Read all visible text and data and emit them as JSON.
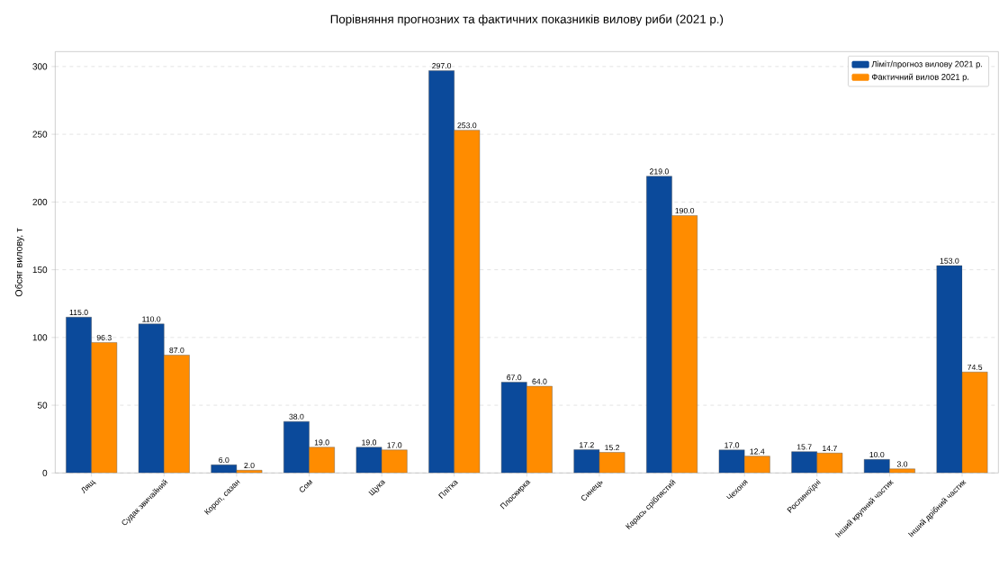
{
  "chart_data": {
    "type": "bar",
    "title": "Порівняння прогнозних та фактичних показників вилову риби (2021 р.)",
    "ylabel": "Обсяг вилову, т",
    "categories": [
      "Лящ",
      "Судак звичайний",
      "Короп, сазан",
      "Сом",
      "Щука",
      "Плітка",
      "Плоскирка",
      "Синець",
      "Карась сріблястий",
      "Чехоня",
      "Рослиноїдні",
      "Інший крупний частик",
      "Інший дрібний частик"
    ],
    "series": [
      {
        "name": "Ліміт/прогноз вилову 2021 р.",
        "color": "#0b4a9b",
        "values": [
          115.0,
          110.0,
          6.0,
          38.0,
          19.0,
          297.0,
          67.0,
          17.2,
          219.0,
          17.0,
          15.7,
          10.0,
          153.0
        ],
        "value_labels": [
          "115.0",
          "110.0",
          "6.0",
          "38.0",
          "19.0",
          "297.0",
          "67.0",
          "17.2",
          "219.0",
          "17.0",
          "15.7",
          "10.0",
          "153.0"
        ]
      },
      {
        "name": "Фактичний вилов 2021 р.",
        "color": "#ff8c00",
        "values": [
          96.3,
          87.0,
          2.0,
          19.0,
          17.0,
          253.0,
          64.0,
          15.2,
          190.0,
          12.4,
          14.7,
          3.0,
          74.5
        ],
        "value_labels": [
          "96.3",
          "87.0",
          "2.0",
          "19.0",
          "17.0",
          "253.0",
          "64.0",
          "15.2",
          "190.0",
          "12.4",
          "14.7",
          "3.0",
          "74.5"
        ]
      }
    ],
    "ylim": [
      0,
      311
    ],
    "yticks": [
      0,
      50,
      100,
      150,
      200,
      250,
      300
    ],
    "grid": "y",
    "legend": "top right"
  }
}
